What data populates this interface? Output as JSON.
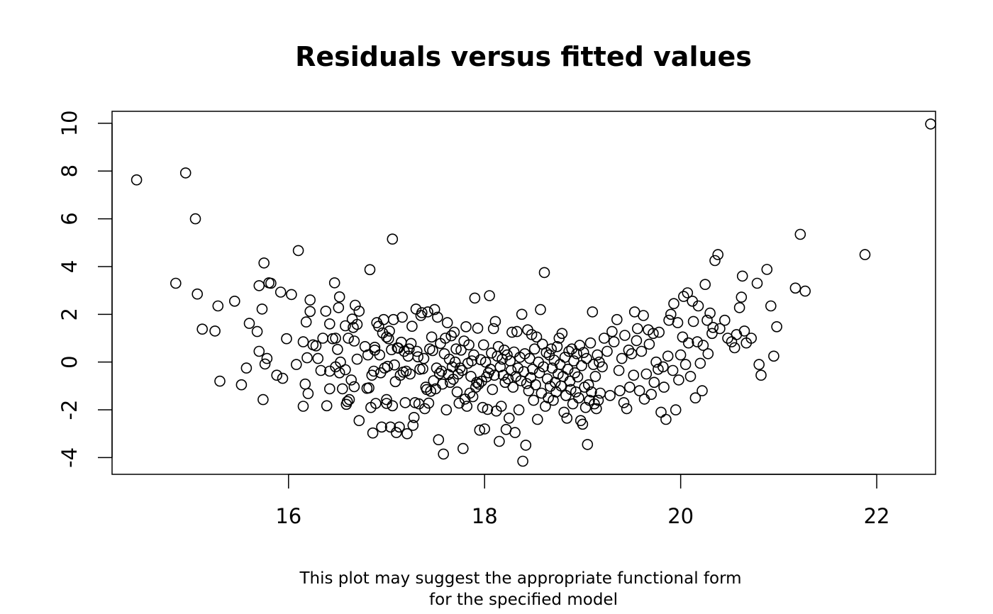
{
  "chart_data": {
    "type": "scatter",
    "title": "Residuals versus fitted values",
    "xlabel": "",
    "ylabel": "",
    "caption": [
      "This plot may suggest the appropriate functional form",
      "for the specified model"
    ],
    "xlim": [
      14.2,
      22.6
    ],
    "ylim": [
      -4.7,
      10.5
    ],
    "x_ticks": [
      16,
      18,
      20,
      22
    ],
    "y_ticks": [
      -4,
      -2,
      0,
      2,
      4,
      6,
      8,
      10
    ],
    "x_tick_labels": [
      "16",
      "18",
      "20",
      "22"
    ],
    "y_tick_labels": [
      "-4",
      "-2",
      "0",
      "2",
      "4",
      "6",
      "8",
      "10"
    ],
    "grid": false,
    "legend": "none",
    "marker": "open-circle",
    "marker_color": "#000000",
    "points": [
      [
        14.45,
        7.63
      ],
      [
        14.95,
        7.92
      ],
      [
        15.05,
        6.0
      ],
      [
        14.85,
        3.3
      ],
      [
        15.07,
        2.85
      ],
      [
        15.12,
        1.38
      ],
      [
        15.25,
        1.3
      ],
      [
        15.28,
        2.35
      ],
      [
        15.3,
        -0.8
      ],
      [
        15.45,
        2.55
      ],
      [
        15.52,
        -0.95
      ],
      [
        15.57,
        -0.25
      ],
      [
        15.6,
        1.62
      ],
      [
        15.68,
        1.28
      ],
      [
        15.7,
        0.45
      ],
      [
        15.7,
        3.2
      ],
      [
        15.73,
        2.22
      ],
      [
        15.74,
        -1.57
      ],
      [
        15.75,
        4.15
      ],
      [
        15.76,
        -0.08
      ],
      [
        15.78,
        0.15
      ],
      [
        15.8,
        3.32
      ],
      [
        15.82,
        3.3
      ],
      [
        15.88,
        -0.55
      ],
      [
        15.92,
        2.93
      ],
      [
        15.94,
        -0.68
      ],
      [
        15.98,
        0.98
      ],
      [
        16.03,
        2.83
      ],
      [
        16.08,
        -0.1
      ],
      [
        16.1,
        4.67
      ],
      [
        16.15,
        0.85
      ],
      [
        16.15,
        -1.85
      ],
      [
        16.17,
        -0.92
      ],
      [
        16.18,
        1.68
      ],
      [
        16.19,
        0.18
      ],
      [
        16.2,
        -1.32
      ],
      [
        16.22,
        2.6
      ],
      [
        16.22,
        2.12
      ],
      [
        16.25,
        0.72
      ],
      [
        16.28,
        0.68
      ],
      [
        16.3,
        0.15
      ],
      [
        16.33,
        -0.35
      ],
      [
        16.35,
        1.0
      ],
      [
        16.38,
        2.13
      ],
      [
        16.39,
        -1.83
      ],
      [
        16.42,
        -0.38
      ],
      [
        16.42,
        1.6
      ],
      [
        16.42,
        -1.12
      ],
      [
        16.45,
        0.98
      ],
      [
        16.47,
        3.32
      ],
      [
        16.48,
        1.0
      ],
      [
        16.48,
        -0.2
      ],
      [
        16.5,
        0.53
      ],
      [
        16.51,
        2.28
      ],
      [
        16.52,
        2.73
      ],
      [
        16.52,
        -0.45
      ],
      [
        16.53,
        0.0
      ],
      [
        16.55,
        -1.12
      ],
      [
        16.58,
        -0.32
      ],
      [
        16.58,
        1.52
      ],
      [
        16.59,
        -1.77
      ],
      [
        16.6,
        -1.65
      ],
      [
        16.61,
        1.0
      ],
      [
        16.62,
        -1.57
      ],
      [
        16.64,
        -0.75
      ],
      [
        16.65,
        1.8
      ],
      [
        16.66,
        1.45
      ],
      [
        16.67,
        0.88
      ],
      [
        16.67,
        -1.03
      ],
      [
        16.68,
        2.38
      ],
      [
        16.7,
        1.58
      ],
      [
        16.7,
        0.12
      ],
      [
        16.72,
        2.13
      ],
      [
        16.72,
        -2.45
      ],
      [
        16.78,
        0.65
      ],
      [
        16.8,
        -1.1
      ],
      [
        16.81,
        0.3
      ],
      [
        16.82,
        -1.08
      ],
      [
        16.83,
        3.87
      ],
      [
        16.84,
        -1.9
      ],
      [
        16.85,
        -0.55
      ],
      [
        16.86,
        -2.97
      ],
      [
        16.87,
        -0.38
      ],
      [
        16.88,
        0.62
      ],
      [
        16.88,
        0.5
      ],
      [
        16.89,
        -1.73
      ],
      [
        16.9,
        1.65
      ],
      [
        16.92,
        1.5
      ],
      [
        16.93,
        0.3
      ],
      [
        16.94,
        -0.45
      ],
      [
        16.95,
        -2.72
      ],
      [
        16.96,
        1.22
      ],
      [
        16.97,
        1.78
      ],
      [
        16.98,
        -0.25
      ],
      [
        17.0,
        -1.73
      ],
      [
        17.0,
        -1.57
      ],
      [
        17.0,
        1.05
      ],
      [
        17.01,
        -0.18
      ],
      [
        17.02,
        0.98
      ],
      [
        17.03,
        1.3
      ],
      [
        17.04,
        -2.72
      ],
      [
        17.05,
        0.52
      ],
      [
        17.06,
        -1.83
      ],
      [
        17.06,
        5.15
      ],
      [
        17.07,
        1.78
      ],
      [
        17.08,
        -0.12
      ],
      [
        17.09,
        -0.82
      ],
      [
        17.1,
        -2.95
      ],
      [
        17.11,
        0.6
      ],
      [
        17.12,
        0.58
      ],
      [
        17.13,
        -2.72
      ],
      [
        17.14,
        -0.55
      ],
      [
        17.15,
        0.83
      ],
      [
        17.16,
        1.88
      ],
      [
        17.17,
        -0.42
      ],
      [
        17.18,
        0.45
      ],
      [
        17.19,
        -1.7
      ],
      [
        17.2,
        -0.38
      ],
      [
        17.21,
        -3.0
      ],
      [
        17.22,
        0.25
      ],
      [
        17.23,
        0.55
      ],
      [
        17.24,
        -0.5
      ],
      [
        17.25,
        0.78
      ],
      [
        17.26,
        1.5
      ],
      [
        17.27,
        -2.65
      ],
      [
        17.28,
        -2.32
      ],
      [
        17.29,
        -1.7
      ],
      [
        17.3,
        2.22
      ],
      [
        17.31,
        0.45
      ],
      [
        17.32,
        0.22
      ],
      [
        17.33,
        -1.75
      ],
      [
        17.34,
        -0.3
      ],
      [
        17.35,
        1.95
      ],
      [
        17.36,
        2.07
      ],
      [
        17.37,
        -0.28
      ],
      [
        17.38,
        0.15
      ],
      [
        17.39,
        -1.95
      ],
      [
        17.4,
        -1.05
      ],
      [
        17.41,
        -1.15
      ],
      [
        17.42,
        2.1
      ],
      [
        17.43,
        -1.72
      ],
      [
        17.44,
        0.55
      ],
      [
        17.45,
        -1.22
      ],
      [
        17.46,
        1.05
      ],
      [
        17.47,
        0.48
      ],
      [
        17.48,
        -0.78
      ],
      [
        17.49,
        2.2
      ],
      [
        17.5,
        -1.12
      ],
      [
        17.51,
        -0.25
      ],
      [
        17.52,
        1.88
      ],
      [
        17.53,
        -3.25
      ],
      [
        17.54,
        -0.48
      ],
      [
        17.55,
        0.78
      ],
      [
        17.56,
        -0.38
      ],
      [
        17.57,
        -0.92
      ],
      [
        17.58,
        -3.85
      ],
      [
        17.59,
        0.35
      ],
      [
        17.6,
        1.0
      ],
      [
        17.61,
        -2.0
      ],
      [
        17.62,
        1.65
      ],
      [
        17.63,
        -0.52
      ],
      [
        17.64,
        0.12
      ],
      [
        17.65,
        -0.85
      ],
      [
        17.66,
        1.1
      ],
      [
        17.67,
        -0.2
      ],
      [
        17.68,
        -0.72
      ],
      [
        17.69,
        1.25
      ],
      [
        17.7,
        0.0
      ],
      [
        17.71,
        0.55
      ],
      [
        17.72,
        -1.25
      ],
      [
        17.73,
        -0.5
      ],
      [
        17.74,
        -1.72
      ],
      [
        17.75,
        -0.25
      ],
      [
        17.76,
        0.5
      ],
      [
        17.77,
        -0.35
      ],
      [
        17.78,
        -3.62
      ],
      [
        17.79,
        0.88
      ],
      [
        17.8,
        -1.55
      ],
      [
        17.81,
        1.48
      ],
      [
        17.82,
        -1.85
      ],
      [
        17.83,
        -0.05
      ],
      [
        17.84,
        0.72
      ],
      [
        17.85,
        -1.3
      ],
      [
        17.86,
        -0.6
      ],
      [
        17.87,
        0.05
      ],
      [
        17.88,
        -1.45
      ],
      [
        17.89,
        0.3
      ],
      [
        17.9,
        2.68
      ],
      [
        17.91,
        -1.05
      ],
      [
        17.92,
        -0.85
      ],
      [
        17.93,
        1.42
      ],
      [
        17.94,
        -0.92
      ],
      [
        17.95,
        -2.85
      ],
      [
        17.96,
        0.1
      ],
      [
        17.97,
        -0.8
      ],
      [
        17.98,
        -1.9
      ],
      [
        17.99,
        0.72
      ],
      [
        18.0,
        -2.8
      ],
      [
        18.01,
        0.0
      ],
      [
        18.02,
        -0.62
      ],
      [
        18.03,
        -1.98
      ],
      [
        18.04,
        -0.45
      ],
      [
        18.05,
        2.78
      ],
      [
        18.06,
        -0.3
      ],
      [
        18.07,
        0.38
      ],
      [
        18.08,
        -1.15
      ],
      [
        18.09,
        1.4
      ],
      [
        18.1,
        -0.55
      ],
      [
        18.11,
        1.7
      ],
      [
        18.12,
        -2.05
      ],
      [
        18.13,
        0.25
      ],
      [
        18.14,
        0.65
      ],
      [
        18.15,
        -3.32
      ],
      [
        18.16,
        -0.2
      ],
      [
        18.17,
        -1.85
      ],
      [
        18.18,
        0.12
      ],
      [
        18.19,
        -0.55
      ],
      [
        18.2,
        0.5
      ],
      [
        18.21,
        -0.85
      ],
      [
        18.22,
        -2.82
      ],
      [
        18.23,
        0.3
      ],
      [
        18.24,
        -0.7
      ],
      [
        18.25,
        -2.35
      ],
      [
        18.26,
        0.05
      ],
      [
        18.27,
        -0.35
      ],
      [
        18.28,
        1.25
      ],
      [
        18.29,
        -1.05
      ],
      [
        18.3,
        0.42
      ],
      [
        18.31,
        -2.95
      ],
      [
        18.32,
        -0.6
      ],
      [
        18.33,
        1.28
      ],
      [
        18.34,
        -0.25
      ],
      [
        18.35,
        -2.0
      ],
      [
        18.36,
        0.2
      ],
      [
        18.37,
        -0.78
      ],
      [
        18.38,
        2.0
      ],
      [
        18.39,
        -4.15
      ],
      [
        18.4,
        -0.4
      ],
      [
        18.41,
        0.35
      ],
      [
        18.42,
        -3.48
      ],
      [
        18.43,
        -0.9
      ],
      [
        18.44,
        1.35
      ],
      [
        18.45,
        -1.2
      ],
      [
        18.46,
        0.15
      ],
      [
        18.47,
        -0.65
      ],
      [
        18.48,
        1.15
      ],
      [
        18.49,
        -0.3
      ],
      [
        18.5,
        -1.6
      ],
      [
        18.51,
        0.55
      ],
      [
        18.52,
        -0.95
      ],
      [
        18.53,
        1.05
      ],
      [
        18.54,
        -2.4
      ],
      [
        18.55,
        0.0
      ],
      [
        18.56,
        -0.45
      ],
      [
        18.57,
        2.2
      ],
      [
        18.58,
        -1.3
      ],
      [
        18.59,
        0.75
      ],
      [
        18.6,
        -0.2
      ],
      [
        18.61,
        3.75
      ],
      [
        18.62,
        -1.85
      ],
      [
        18.63,
        0.4
      ],
      [
        18.64,
        -0.7
      ],
      [
        18.65,
        -1.5
      ],
      [
        18.66,
        0.3
      ],
      [
        18.67,
        -1.02
      ],
      [
        18.68,
        0.55
      ],
      [
        18.69,
        -0.25
      ],
      [
        18.7,
        -1.6
      ],
      [
        18.71,
        0.08
      ],
      [
        18.72,
        -0.85
      ],
      [
        18.73,
        -1.25
      ],
      [
        18.74,
        0.65
      ],
      [
        18.75,
        -0.5
      ],
      [
        18.76,
        1.0
      ],
      [
        18.77,
        -0.1
      ],
      [
        18.78,
        -1.0
      ],
      [
        18.79,
        1.2
      ],
      [
        18.8,
        -0.6
      ],
      [
        18.81,
        -2.1
      ],
      [
        18.82,
        0.2
      ],
      [
        18.83,
        -1.4
      ],
      [
        18.84,
        -2.35
      ],
      [
        18.85,
        -0.3
      ],
      [
        18.86,
        0.45
      ],
      [
        18.87,
        -0.8
      ],
      [
        18.88,
        -1.15
      ],
      [
        18.89,
        0.55
      ],
      [
        18.9,
        -1.75
      ],
      [
        18.91,
        0.05
      ],
      [
        18.92,
        -0.45
      ],
      [
        18.93,
        -1.25
      ],
      [
        18.94,
        0.35
      ],
      [
        18.95,
        -0.62
      ],
      [
        18.96,
        -1.5
      ],
      [
        18.97,
        0.7
      ],
      [
        18.98,
        -2.45
      ],
      [
        18.99,
        -0.15
      ],
      [
        19.0,
        -2.6
      ],
      [
        19.01,
        0.4
      ],
      [
        19.02,
        -1.05
      ],
      [
        19.03,
        -1.9
      ],
      [
        19.04,
        0.15
      ],
      [
        19.05,
        -3.45
      ],
      [
        19.06,
        -0.95
      ],
      [
        19.07,
        -1.6
      ],
      [
        19.08,
        0.8
      ],
      [
        19.09,
        -1.25
      ],
      [
        19.1,
        2.1
      ],
      [
        19.11,
        -0.1
      ],
      [
        19.12,
        -1.75
      ],
      [
        19.13,
        -0.6
      ],
      [
        19.14,
        -1.95
      ],
      [
        19.15,
        0.3
      ],
      [
        19.16,
        -1.6
      ],
      [
        19.17,
        0.0
      ],
      [
        19.18,
        -1.3
      ],
      [
        19.2,
        -0.2
      ],
      [
        19.22,
        1.0
      ],
      [
        19.25,
        0.45
      ],
      [
        19.28,
        -1.4
      ],
      [
        19.3,
        1.28
      ],
      [
        19.32,
        0.85
      ],
      [
        19.35,
        1.78
      ],
      [
        19.37,
        -0.35
      ],
      [
        19.38,
        -1.2
      ],
      [
        19.4,
        0.15
      ],
      [
        19.42,
        -1.7
      ],
      [
        19.43,
        1.12
      ],
      [
        19.45,
        -1.95
      ],
      [
        19.47,
        0.5
      ],
      [
        19.48,
        -1.05
      ],
      [
        19.5,
        0.35
      ],
      [
        19.52,
        -0.55
      ],
      [
        19.53,
        2.1
      ],
      [
        19.55,
        0.9
      ],
      [
        19.56,
        1.4
      ],
      [
        19.58,
        -1.2
      ],
      [
        19.6,
        0.45
      ],
      [
        19.62,
        1.95
      ],
      [
        19.63,
        -1.55
      ],
      [
        19.65,
        -0.5
      ],
      [
        19.67,
        1.35
      ],
      [
        19.68,
        0.75
      ],
      [
        19.7,
        -1.35
      ],
      [
        19.72,
        1.2
      ],
      [
        19.73,
        -0.85
      ],
      [
        19.75,
        0.0
      ],
      [
        19.77,
        -0.3
      ],
      [
        19.78,
        1.25
      ],
      [
        19.8,
        -2.1
      ],
      [
        19.82,
        -0.2
      ],
      [
        19.83,
        -1.05
      ],
      [
        19.85,
        -2.4
      ],
      [
        19.87,
        0.25
      ],
      [
        19.88,
        1.75
      ],
      [
        19.9,
        2.0
      ],
      [
        19.92,
        -0.35
      ],
      [
        19.93,
        2.45
      ],
      [
        19.95,
        -2.0
      ],
      [
        19.97,
        1.65
      ],
      [
        19.98,
        -0.75
      ],
      [
        20.0,
        0.3
      ],
      [
        20.02,
        1.05
      ],
      [
        20.03,
        2.75
      ],
      [
        20.05,
        -0.1
      ],
      [
        20.07,
        2.9
      ],
      [
        20.08,
        0.8
      ],
      [
        20.1,
        -0.6
      ],
      [
        20.12,
        2.55
      ],
      [
        20.13,
        1.7
      ],
      [
        20.15,
        -1.5
      ],
      [
        20.17,
        0.85
      ],
      [
        20.18,
        2.35
      ],
      [
        20.2,
        -0.05
      ],
      [
        20.22,
        -1.2
      ],
      [
        20.23,
        0.7
      ],
      [
        20.25,
        3.25
      ],
      [
        20.27,
        1.75
      ],
      [
        20.28,
        0.35
      ],
      [
        20.3,
        2.05
      ],
      [
        20.32,
        1.2
      ],
      [
        20.33,
        1.45
      ],
      [
        20.35,
        4.25
      ],
      [
        20.38,
        4.5
      ],
      [
        20.4,
        1.4
      ],
      [
        20.45,
        1.75
      ],
      [
        20.48,
        1.0
      ],
      [
        20.52,
        0.85
      ],
      [
        20.55,
        0.6
      ],
      [
        20.57,
        1.15
      ],
      [
        20.6,
        2.28
      ],
      [
        20.62,
        2.72
      ],
      [
        20.63,
        3.6
      ],
      [
        20.65,
        1.3
      ],
      [
        20.67,
        0.8
      ],
      [
        20.72,
        1.0
      ],
      [
        20.78,
        3.3
      ],
      [
        20.8,
        -0.1
      ],
      [
        20.82,
        -0.55
      ],
      [
        20.88,
        3.88
      ],
      [
        20.92,
        2.35
      ],
      [
        20.95,
        0.25
      ],
      [
        20.98,
        1.48
      ],
      [
        21.17,
        3.1
      ],
      [
        21.22,
        5.35
      ],
      [
        21.27,
        2.97
      ],
      [
        21.88,
        4.5
      ],
      [
        22.55,
        9.97
      ]
    ]
  }
}
